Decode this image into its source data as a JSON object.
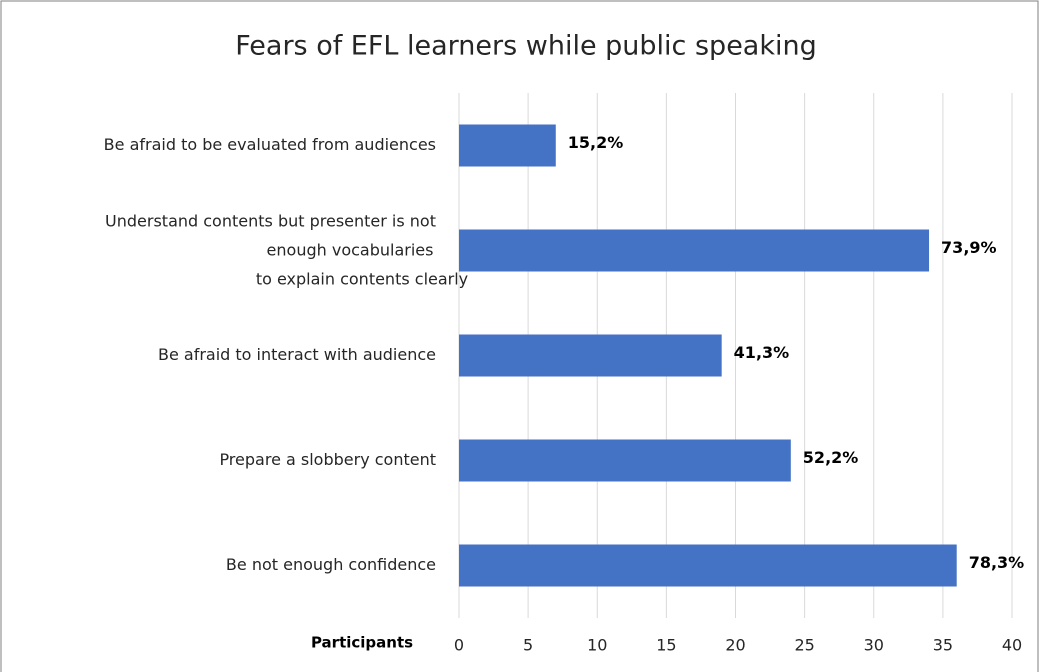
{
  "chart_data": {
    "type": "bar",
    "orientation": "horizontal",
    "title": "Fears of EFL learners while public speaking",
    "xlabel": "Participants",
    "categories": [
      "Be afraid to be evaluated from audiences",
      "Understand contents but presenter is not\nenough vocabularies\nto explain contents clearly",
      "Be afraid to interact with audience",
      "Prepare a  slobbery content",
      "Be not enough confidence"
    ],
    "values": [
      7,
      34,
      19,
      24,
      36
    ],
    "value_labels": [
      "15,2%",
      "73,9%",
      "41,3%",
      "52,2%",
      "78,3%"
    ],
    "color": "#4472c4",
    "xlim": [
      0,
      40
    ],
    "xticks": [
      0,
      5,
      10,
      15,
      20,
      25,
      30,
      35,
      40
    ],
    "grid": true
  }
}
